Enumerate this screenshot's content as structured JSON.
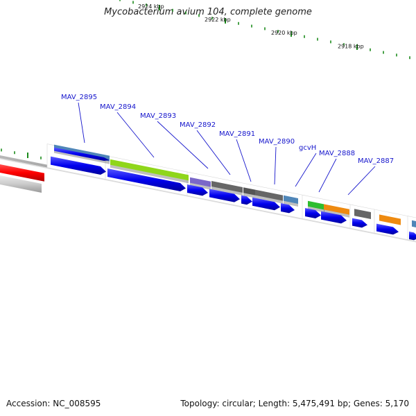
{
  "title": "Mycobacterium avium 104, complete genome",
  "footer": {
    "accession": "Accession: NC_008595",
    "summary": "Topology: circular; Length: 5,475,491 bp; Genes: 5,170"
  },
  "colors": {
    "cds": "#0000ee",
    "tick": "#1a8a1a",
    "gene_label": "#1515cc",
    "backbone": "#7a7a7a"
  },
  "kbp_labels": [
    "2928 kbp",
    "2926 kbp",
    "2924 kbp",
    "2922 kbp",
    "2920 kbp",
    "2918 kbp"
  ],
  "genes": [
    {
      "label": "MAV_2895",
      "color": "#4f86b8"
    },
    {
      "label": "MAV_2894",
      "color": "#8fd61a"
    },
    {
      "label": "MAV_2893",
      "color": "#7b68c8"
    },
    {
      "label": "MAV_2892",
      "color": "#666666"
    },
    {
      "label": "MAV_2891",
      "color": "#555555"
    },
    {
      "label": "MAV_2890",
      "color": "#666666"
    },
    {
      "label": "gcvH",
      "color": "#4f86b8"
    },
    {
      "label": "MAV_2888",
      "color": "#2ebd2e"
    },
    {
      "label": "MAV_2887",
      "color": "#ee8a10"
    }
  ]
}
